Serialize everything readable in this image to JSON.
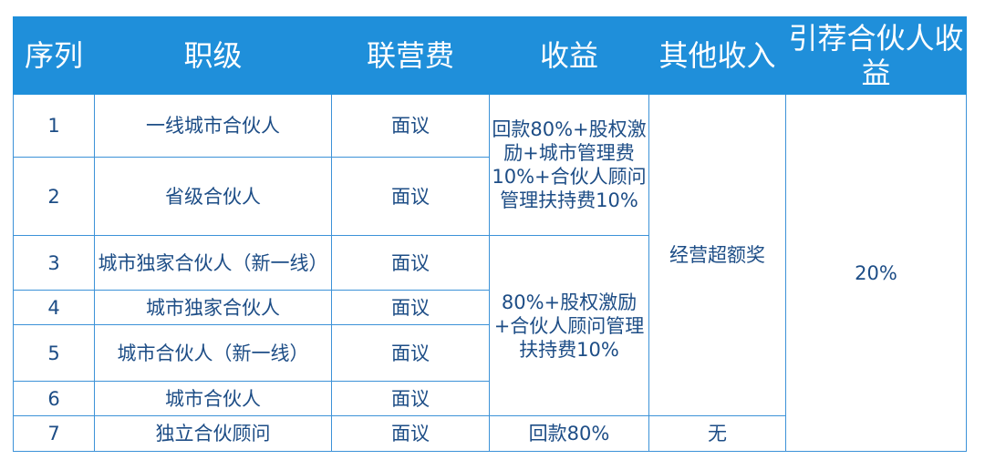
{
  "table": {
    "header": [
      "序列",
      "职级",
      "联营费",
      "收益",
      "其他收入",
      "引荐合伙人收益"
    ],
    "rows": [
      [
        "1",
        "一线城市合伙人",
        "面议",
        "回款80%+股权激励+城市管理费10%+合伙人顾问管理扶持费10%",
        "经营超额奖",
        "20%"
      ],
      [
        "2",
        "省级合伙人",
        "面议"
      ],
      [
        "3",
        "城市独家合伙人（新一线）",
        "面议",
        "80%+股权激励+合伙人顾问管理扶持费10%"
      ],
      [
        "4",
        "城市独家合伙人",
        "面议"
      ],
      [
        "5",
        "城市合伙人（新一线）",
        "面议"
      ],
      [
        "6",
        "城市合伙人",
        "面议"
      ],
      [
        "7",
        "独立合伙顾问",
        "面议",
        "回款80%",
        "无"
      ]
    ]
  }
}
